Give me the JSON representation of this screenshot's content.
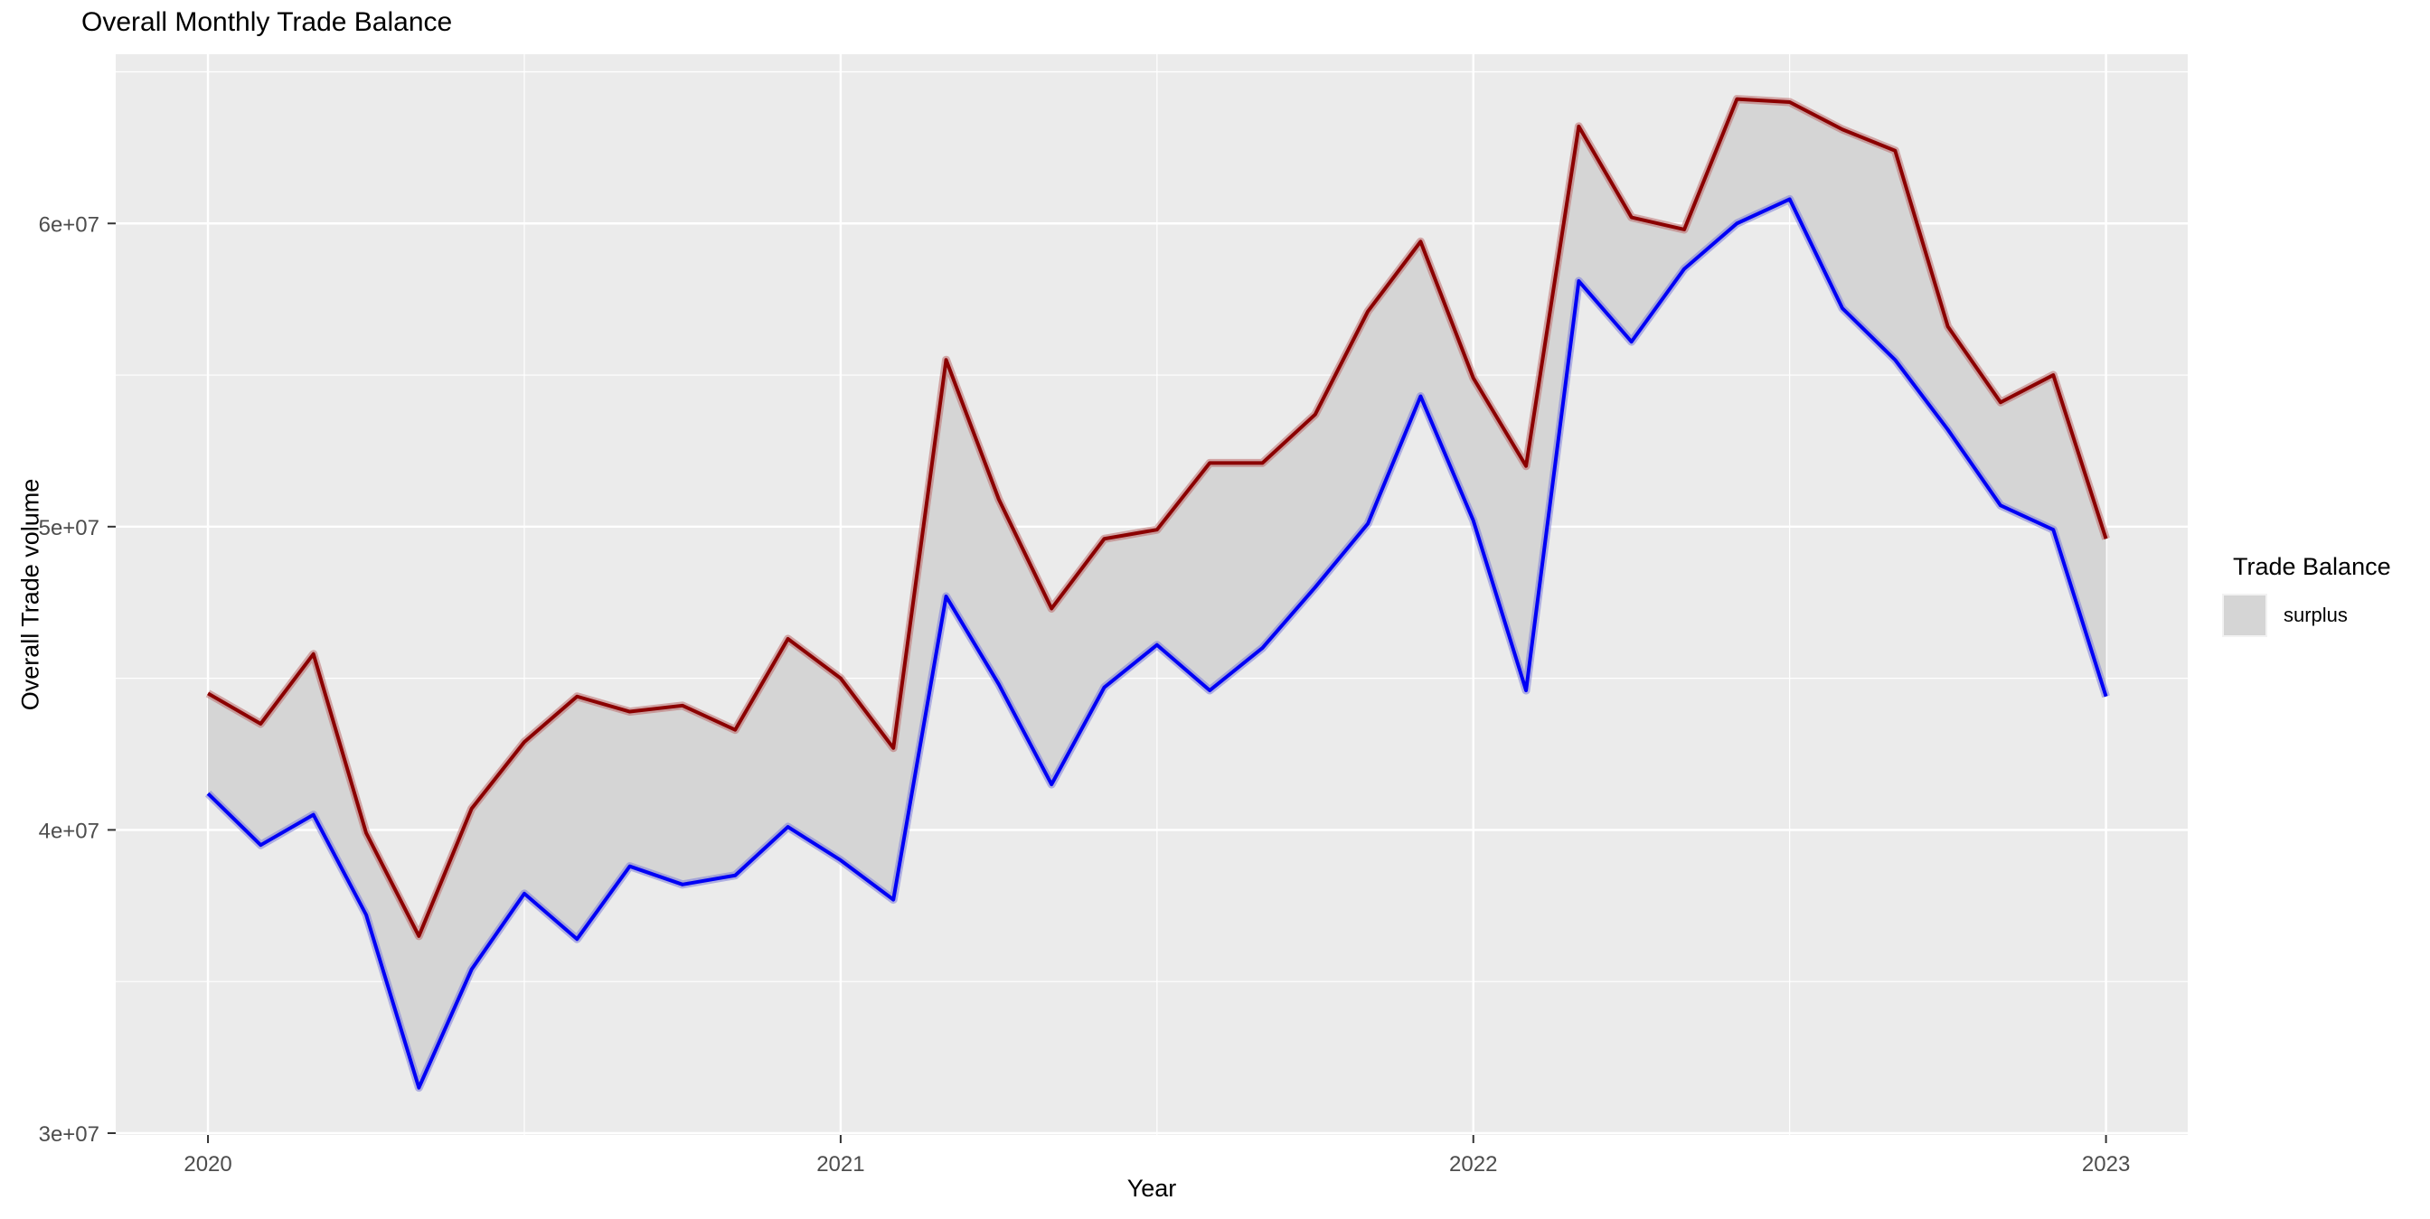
{
  "page": {
    "title": "Overall Monthly Trade Balance"
  },
  "axes": {
    "x_title": "Year",
    "y_title": "Overall Trade volume"
  },
  "legend": {
    "title": "Trade Balance",
    "items": [
      {
        "label": "surplus",
        "swatch_color": "#D5D5D5"
      }
    ]
  },
  "colors": {
    "panel_background": "#EBEBEB",
    "gridline": "#FFFFFF",
    "tick_mark": "#333333",
    "tick_text": "#4d4d4d",
    "ribbon_fill": "#D5D5D5",
    "upper_line": "#8B0000",
    "upper_line_halo": "#BC6B6B",
    "lower_line": "#0000F5",
    "lower_line_halo": "#7B7BD8"
  },
  "chart_data": {
    "type": "area",
    "description": "Two monthly line series (upper dark-red, lower blue) with the gap shaded as a gray ribbon labeled 'surplus'.",
    "title": "Overall Monthly Trade Balance",
    "xlabel": "Year",
    "ylabel": "Overall Trade volume",
    "x": [
      "2020-01",
      "2020-02",
      "2020-03",
      "2020-04",
      "2020-05",
      "2020-06",
      "2020-07",
      "2020-08",
      "2020-09",
      "2020-10",
      "2020-11",
      "2020-12",
      "2021-01",
      "2021-02",
      "2021-03",
      "2021-04",
      "2021-05",
      "2021-06",
      "2021-07",
      "2021-08",
      "2021-09",
      "2021-10",
      "2021-11",
      "2021-12",
      "2022-01",
      "2022-02",
      "2022-03",
      "2022-04",
      "2022-05",
      "2022-06",
      "2022-07",
      "2022-08",
      "2022-09",
      "2022-10",
      "2022-11",
      "2022-12",
      "2023-01"
    ],
    "series": [
      {
        "name": "upper_red_line",
        "color": "#8B0000",
        "values": [
          44500000,
          43500000,
          45800000,
          39900000,
          36500000,
          40700000,
          42900000,
          44400000,
          43900000,
          44100000,
          43300000,
          46300000,
          45000000,
          42700000,
          55500000,
          50900000,
          47300000,
          49600000,
          49900000,
          52100000,
          52100000,
          53700000,
          57100000,
          59400000,
          54900000,
          52000000,
          63200000,
          60200000,
          59800000,
          64100000,
          64000000,
          63100000,
          62400000,
          56600000,
          54100000,
          55000000,
          49600000
        ]
      },
      {
        "name": "lower_blue_line",
        "color": "#0000F5",
        "values": [
          41200000,
          39500000,
          40500000,
          37200000,
          31500000,
          35400000,
          37900000,
          36400000,
          38800000,
          38200000,
          38500000,
          40100000,
          39000000,
          37700000,
          47700000,
          44800000,
          41500000,
          44700000,
          46100000,
          44600000,
          46000000,
          48000000,
          50100000,
          54300000,
          50200000,
          44600000,
          58100000,
          56100000,
          58500000,
          60000000,
          60800000,
          57200000,
          55500000,
          53200000,
          50700000,
          49900000,
          44400000
        ]
      }
    ],
    "ribbon": {
      "between": [
        "upper_red_line",
        "lower_blue_line"
      ],
      "fill": "#D5D5D5",
      "legend_label": "surplus"
    },
    "ylim": [
      29940000,
      65580000
    ],
    "xlim_months": [
      -1.75,
      37.55
    ],
    "y_major_ticks": [
      30000000,
      40000000,
      50000000,
      60000000
    ],
    "y_tick_labels": [
      "3e+07",
      "4e+07",
      "5e+07",
      "6e+07"
    ],
    "y_minor_ticks": [
      35000000,
      45000000,
      55000000,
      65000000
    ],
    "x_major_tick_month_index": [
      0,
      12,
      24,
      36
    ],
    "x_tick_labels": [
      "2020",
      "2021",
      "2022",
      "2023"
    ],
    "x_minor_tick_month_index": [
      6,
      18,
      30
    ],
    "grid": true,
    "legend_position": "right"
  }
}
